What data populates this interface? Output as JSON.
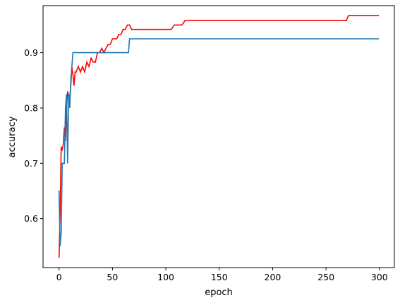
{
  "chart_data": {
    "type": "line",
    "title": "",
    "xlabel": "epoch",
    "ylabel": "accuracy",
    "xlim": [
      -15,
      314
    ],
    "ylim": [
      0.5115,
      0.985
    ],
    "grid": false,
    "legend": "none",
    "xticks": [
      0,
      50,
      100,
      150,
      200,
      250,
      300
    ],
    "xtick_labels": [
      "0",
      "50",
      "100",
      "150",
      "200",
      "250",
      "300"
    ],
    "yticks": [
      0.6,
      0.7,
      0.8,
      0.9
    ],
    "ytick_labels": [
      "0.6",
      "0.7",
      "0.8",
      "0.9"
    ],
    "series": [
      {
        "color": "#ff0000",
        "x": [
          0,
          1,
          2,
          3,
          4,
          5,
          6,
          7,
          8,
          9,
          10,
          11,
          12,
          13,
          14,
          15,
          16,
          18,
          20,
          22,
          24,
          26,
          28,
          30,
          32,
          34,
          36,
          38,
          40,
          42,
          44,
          46,
          48,
          50,
          52,
          54,
          56,
          58,
          60,
          62,
          64,
          66,
          68,
          70,
          105,
          108,
          115,
          118,
          269,
          271,
          299
        ],
        "y": [
          0.53,
          0.61,
          0.73,
          0.725,
          0.735,
          0.765,
          0.74,
          0.8,
          0.83,
          0.82,
          0.82,
          0.84,
          0.875,
          0.86,
          0.84,
          0.865,
          0.865,
          0.875,
          0.865,
          0.875,
          0.865,
          0.883,
          0.875,
          0.89,
          0.883,
          0.883,
          0.9,
          0.9,
          0.908,
          0.9,
          0.908,
          0.915,
          0.915,
          0.925,
          0.925,
          0.925,
          0.933,
          0.933,
          0.942,
          0.942,
          0.95,
          0.95,
          0.942,
          0.942,
          0.942,
          0.95,
          0.95,
          0.958,
          0.958,
          0.967,
          0.967
        ]
      },
      {
        "color": "#1f77b4",
        "x": [
          0,
          1,
          2,
          3,
          4,
          5,
          6,
          7,
          8,
          9,
          10,
          11,
          12,
          13,
          14,
          65,
          66,
          299
        ],
        "y": [
          0.65,
          0.55,
          0.575,
          0.7,
          0.7,
          0.7,
          0.8,
          0.825,
          0.7,
          0.825,
          0.8,
          0.85,
          0.875,
          0.9,
          0.9,
          0.9,
          0.925,
          0.925
        ]
      }
    ]
  }
}
